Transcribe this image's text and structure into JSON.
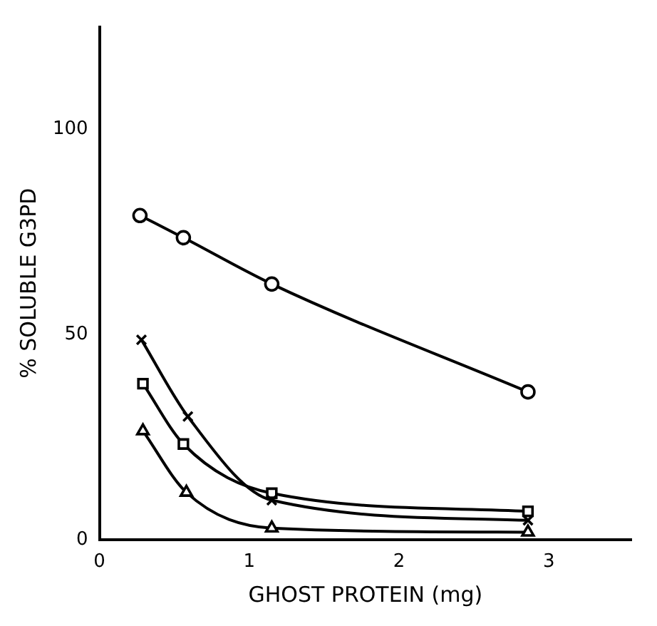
{
  "chart_data": {
    "type": "line",
    "xlabel": "GHOST PROTEIN (mg)",
    "ylabel": "% SOLUBLE G3PD",
    "xlim": [
      0,
      3.55
    ],
    "xticks": [
      0,
      1,
      2,
      3
    ],
    "ylim": [
      0,
      125
    ],
    "yticks": [
      0,
      50,
      100
    ],
    "grid": false,
    "legend": false,
    "line_style": "solid",
    "series": [
      {
        "color": "#000000",
        "marker": "circle",
        "x": [
          0.27,
          0.56,
          1.15,
          2.86
        ],
        "values": [
          79,
          73.6,
          62.3,
          36
        ]
      },
      {
        "color": "#000000",
        "marker": "cross",
        "x": [
          0.28,
          0.59,
          1.15,
          2.86
        ],
        "values": [
          48.7,
          30,
          9.6,
          4.7
        ]
      },
      {
        "color": "#000000",
        "marker": "square",
        "x": [
          0.29,
          0.56,
          1.15,
          2.86
        ],
        "values": [
          38,
          23.3,
          11.3,
          6.9
        ]
      },
      {
        "color": "#000000",
        "marker": "triangle",
        "x": [
          0.29,
          0.58,
          1.15,
          2.86
        ],
        "values": [
          26.5,
          11.5,
          2.8,
          1.8
        ]
      }
    ]
  }
}
